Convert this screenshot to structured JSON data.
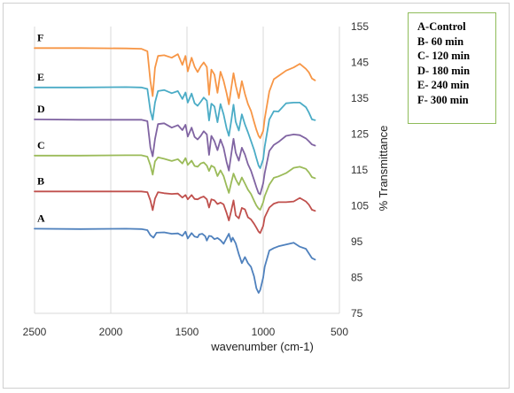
{
  "chart_data": {
    "type": "line",
    "xlabel": "wavenumber (cm-1)",
    "ylabel": "% Transmittance",
    "xlim": [
      2500,
      500
    ],
    "ylim": [
      75,
      155
    ],
    "x_ticks": [
      "2500",
      "2000",
      "1500",
      "1000",
      "500"
    ],
    "y_ticks": [
      "75",
      "85",
      "95",
      "105",
      "115",
      "125",
      "135",
      "145",
      "155"
    ],
    "y_axis_side": "right",
    "grid": "vertical",
    "legend_position": "top-right",
    "legend": [
      "A-Control",
      "B- 60 min",
      "C- 120 min",
      "D- 180 min",
      "E- 240 min",
      "F- 300 min"
    ],
    "series": [
      {
        "name": "A",
        "color": "#4f81bd",
        "x": [
          2500,
          2200,
          1900,
          1800,
          1760,
          1740,
          1720,
          1700,
          1650,
          1600,
          1560,
          1530,
          1510,
          1495,
          1470,
          1450,
          1430,
          1420,
          1400,
          1380,
          1370,
          1355,
          1340,
          1320,
          1300,
          1280,
          1260,
          1240,
          1225,
          1210,
          1200,
          1180,
          1160,
          1140,
          1120,
          1100,
          1080,
          1060,
          1045,
          1030,
          1020,
          1000,
          990,
          960,
          930,
          900,
          850,
          800,
          760,
          720,
          700,
          680,
          660
        ],
        "y": [
          98.6,
          98.5,
          98.6,
          98.5,
          98.2,
          96.8,
          96.1,
          97.5,
          97.6,
          97.2,
          97.3,
          96.6,
          97.8,
          95.9,
          97.4,
          96.4,
          96.2,
          97.0,
          97.2,
          96.5,
          95.3,
          96.6,
          96.5,
          95.7,
          96.0,
          95.4,
          94.4,
          96.0,
          97.2,
          95.0,
          96.1,
          94.5,
          91.5,
          89.0,
          90.7,
          89.0,
          88.0,
          85.3,
          82.0,
          80.7,
          81.5,
          85.0,
          88.0,
          92.5,
          93.2,
          93.7,
          94.2,
          94.7,
          93.6,
          93.0,
          91.7,
          90.4,
          90.0
        ]
      },
      {
        "name": "B",
        "color": "#c0504d",
        "x": [
          2500,
          2200,
          1900,
          1800,
          1760,
          1740,
          1725,
          1710,
          1690,
          1650,
          1600,
          1560,
          1530,
          1510,
          1495,
          1470,
          1450,
          1430,
          1410,
          1390,
          1370,
          1355,
          1340,
          1320,
          1300,
          1280,
          1260,
          1240,
          1225,
          1210,
          1195,
          1180,
          1160,
          1140,
          1120,
          1100,
          1080,
          1060,
          1045,
          1030,
          1020,
          1000,
          990,
          960,
          930,
          900,
          850,
          800,
          760,
          720,
          700,
          680,
          660
        ],
        "y": [
          109.0,
          109.0,
          109.0,
          109.0,
          108.8,
          106.5,
          103.8,
          107.0,
          108.8,
          108.5,
          108.3,
          108.4,
          107.3,
          108.0,
          106.8,
          108.0,
          106.9,
          106.8,
          107.3,
          107.6,
          106.8,
          104.5,
          106.8,
          106.5,
          105.5,
          105.9,
          105.4,
          103.0,
          100.9,
          103.6,
          106.5,
          102.3,
          101.5,
          104.4,
          104.0,
          101.8,
          101.2,
          100.0,
          98.9,
          97.8,
          97.4,
          99.4,
          101.8,
          104.5,
          105.6,
          106.0,
          106.0,
          106.2,
          107.2,
          106.2,
          105.3,
          103.9,
          103.6
        ]
      },
      {
        "name": "C",
        "color": "#9bbb59",
        "x": [
          2500,
          2200,
          1900,
          1800,
          1760,
          1740,
          1725,
          1710,
          1690,
          1650,
          1600,
          1560,
          1530,
          1510,
          1495,
          1470,
          1450,
          1430,
          1410,
          1390,
          1370,
          1355,
          1340,
          1320,
          1300,
          1280,
          1260,
          1240,
          1225,
          1210,
          1195,
          1180,
          1160,
          1140,
          1120,
          1100,
          1080,
          1060,
          1045,
          1030,
          1020,
          1000,
          990,
          960,
          930,
          900,
          850,
          800,
          760,
          720,
          700,
          680,
          660
        ],
        "y": [
          119.0,
          119.0,
          119.1,
          119.1,
          118.7,
          116.3,
          113.7,
          117.4,
          118.5,
          118.1,
          117.5,
          118.0,
          116.8,
          118.3,
          116.4,
          117.6,
          116.1,
          115.9,
          116.8,
          117.1,
          116.2,
          114.7,
          116.2,
          115.7,
          113.3,
          114.9,
          113.3,
          110.5,
          108.6,
          111.4,
          114.0,
          112.4,
          110.8,
          112.9,
          111.2,
          109.5,
          108.3,
          106.4,
          105.1,
          104.2,
          103.9,
          106.0,
          107.7,
          110.9,
          112.8,
          113.2,
          114.1,
          115.6,
          115.9,
          115.3,
          114.3,
          113.0,
          112.7
        ]
      },
      {
        "name": "D",
        "color": "#8064a2",
        "x": [
          2500,
          2200,
          1900,
          1800,
          1760,
          1740,
          1725,
          1710,
          1690,
          1650,
          1600,
          1560,
          1530,
          1510,
          1495,
          1470,
          1450,
          1430,
          1410,
          1390,
          1370,
          1355,
          1340,
          1320,
          1300,
          1280,
          1260,
          1240,
          1225,
          1210,
          1195,
          1180,
          1160,
          1140,
          1120,
          1100,
          1080,
          1060,
          1045,
          1030,
          1020,
          1000,
          990,
          960,
          930,
          900,
          850,
          800,
          760,
          720,
          700,
          680,
          660
        ],
        "y": [
          129.1,
          129.0,
          129.0,
          129.0,
          128.6,
          121.3,
          118.8,
          123.6,
          127.8,
          128.0,
          126.8,
          127.5,
          126.1,
          127.6,
          124.3,
          126.8,
          124.2,
          123.5,
          124.5,
          125.8,
          124.9,
          119.2,
          124.5,
          123.0,
          120.5,
          123.5,
          121.2,
          117.2,
          114.8,
          119.3,
          123.7,
          119.8,
          117.6,
          121.2,
          119.3,
          116.6,
          114.8,
          112.2,
          110.2,
          108.5,
          108.2,
          111.3,
          114.1,
          120.3,
          122.0,
          122.8,
          124.5,
          124.9,
          124.7,
          123.8,
          123.0,
          122.1,
          121.8
        ]
      },
      {
        "name": "E",
        "color": "#4bacc6",
        "x": [
          2500,
          2200,
          1900,
          1800,
          1760,
          1740,
          1725,
          1710,
          1690,
          1650,
          1600,
          1560,
          1530,
          1510,
          1495,
          1470,
          1450,
          1430,
          1410,
          1390,
          1370,
          1355,
          1340,
          1320,
          1300,
          1280,
          1260,
          1240,
          1225,
          1210,
          1195,
          1180,
          1160,
          1140,
          1120,
          1100,
          1080,
          1060,
          1045,
          1030,
          1020,
          1000,
          990,
          960,
          930,
          900,
          850,
          800,
          760,
          720,
          700,
          680,
          660
        ],
        "y": [
          138.0,
          138.0,
          138.1,
          138.0,
          137.6,
          131.5,
          129.0,
          133.8,
          137.0,
          137.3,
          136.4,
          137.0,
          134.8,
          136.6,
          133.8,
          136.3,
          133.6,
          132.9,
          134.0,
          135.2,
          134.3,
          128.8,
          133.5,
          132.7,
          128.3,
          133.4,
          130.5,
          126.6,
          124.5,
          128.6,
          133.2,
          128.4,
          126.0,
          130.5,
          127.7,
          125.5,
          123.1,
          120.6,
          118.3,
          116.2,
          115.5,
          118.0,
          121.5,
          129.1,
          131.4,
          131.3,
          133.6,
          133.8,
          133.8,
          132.5,
          131.0,
          129.1,
          128.9
        ]
      },
      {
        "name": "F",
        "color": "#f79646",
        "x": [
          2500,
          2200,
          1900,
          1800,
          1760,
          1740,
          1725,
          1710,
          1690,
          1650,
          1600,
          1560,
          1530,
          1510,
          1495,
          1470,
          1450,
          1430,
          1410,
          1390,
          1370,
          1355,
          1340,
          1320,
          1300,
          1280,
          1260,
          1240,
          1225,
          1210,
          1195,
          1180,
          1160,
          1140,
          1120,
          1100,
          1080,
          1060,
          1045,
          1030,
          1020,
          1000,
          990,
          960,
          930,
          900,
          850,
          800,
          760,
          720,
          700,
          680,
          660
        ],
        "y": [
          149.0,
          149.0,
          148.9,
          148.8,
          148.1,
          139.8,
          135.6,
          143.5,
          146.8,
          147.0,
          146.3,
          147.3,
          144.3,
          146.8,
          142.5,
          146.3,
          143.8,
          142.3,
          143.9,
          145.0,
          143.7,
          136.0,
          143.0,
          141.6,
          136.5,
          142.4,
          139.9,
          136.4,
          133.3,
          137.8,
          142.0,
          138.6,
          135.0,
          139.8,
          136.2,
          133.4,
          131.5,
          128.4,
          126.2,
          124.5,
          123.9,
          125.9,
          129.3,
          136.9,
          140.3,
          141.2,
          142.7,
          143.6,
          144.6,
          143.2,
          142.2,
          140.5,
          140.0
        ]
      }
    ]
  }
}
